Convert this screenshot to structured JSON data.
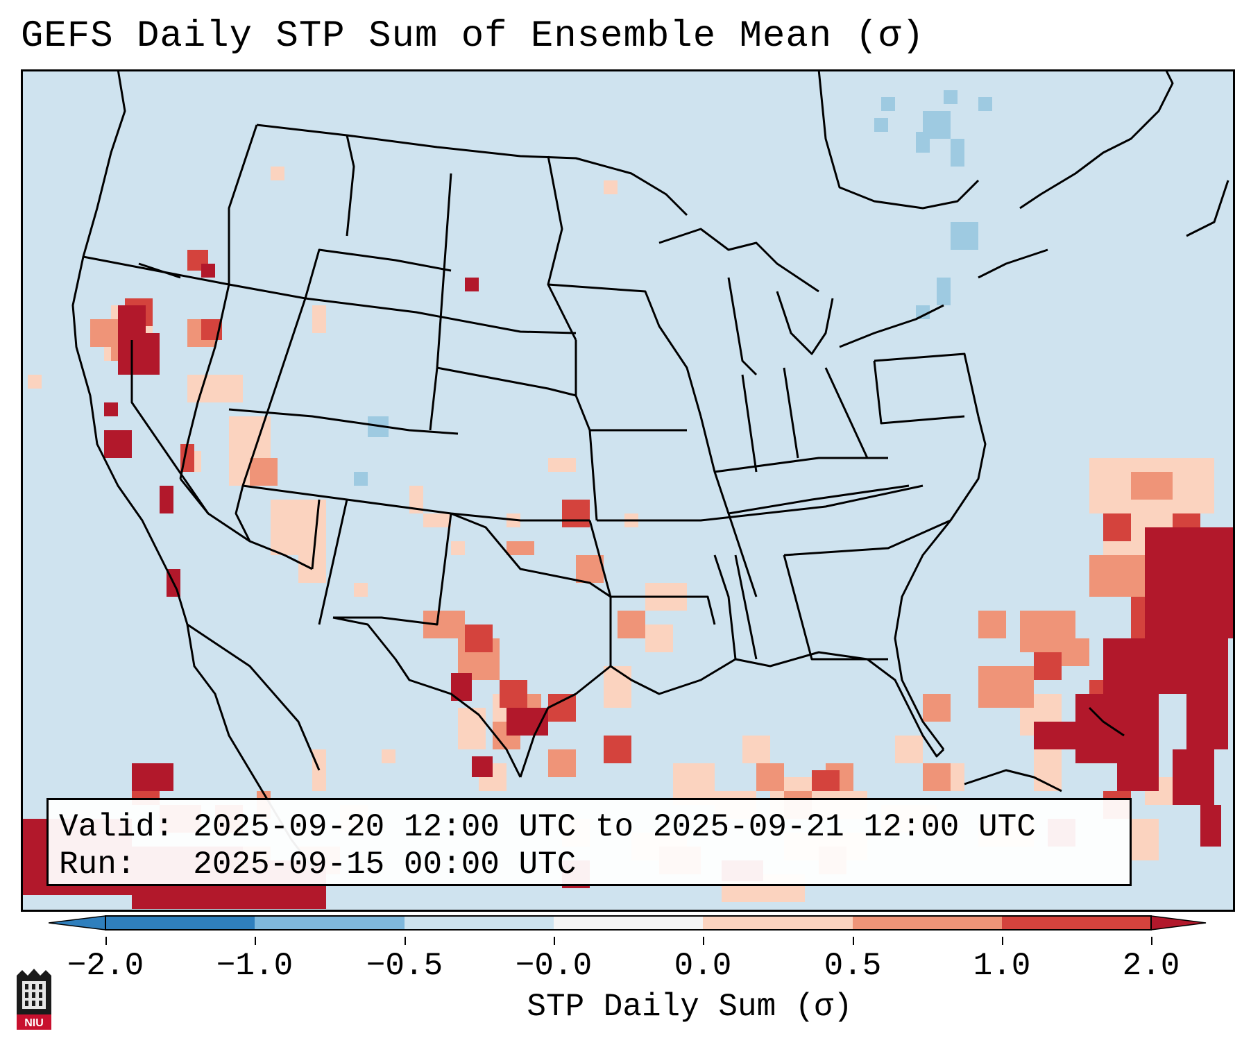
{
  "title": "GEFS Daily STP Sum of Ensemble Mean (σ)",
  "info": {
    "valid_line": "Valid: 2025-09-20 12:00 UTC to 2025-09-21 12:00 UTC",
    "run_line": "Run:   2025-09-15 00:00 UTC"
  },
  "colorbar": {
    "label": "STP Daily Sum (σ)",
    "ticks": [
      "−2.0",
      "−1.0",
      "−0.5",
      "−0.0",
      "0.0",
      "0.5",
      "1.0",
      "2.0"
    ],
    "colors": [
      "#2f7fbd",
      "#7fb8dc",
      "#cde3ef",
      "#f4f4f4",
      "#fbd3bf",
      "#ef9478",
      "#d4433d",
      "#b2182b"
    ]
  },
  "colors": {
    "ocean": "#cfe3ef",
    "land": "#cfe3ef",
    "positive_light": "#fbd3bf",
    "positive_mid": "#ef9478",
    "positive_high": "#d4433d",
    "positive_max": "#b2182b",
    "negative_light": "#9ecae1"
  },
  "logo_text": "NIU"
}
